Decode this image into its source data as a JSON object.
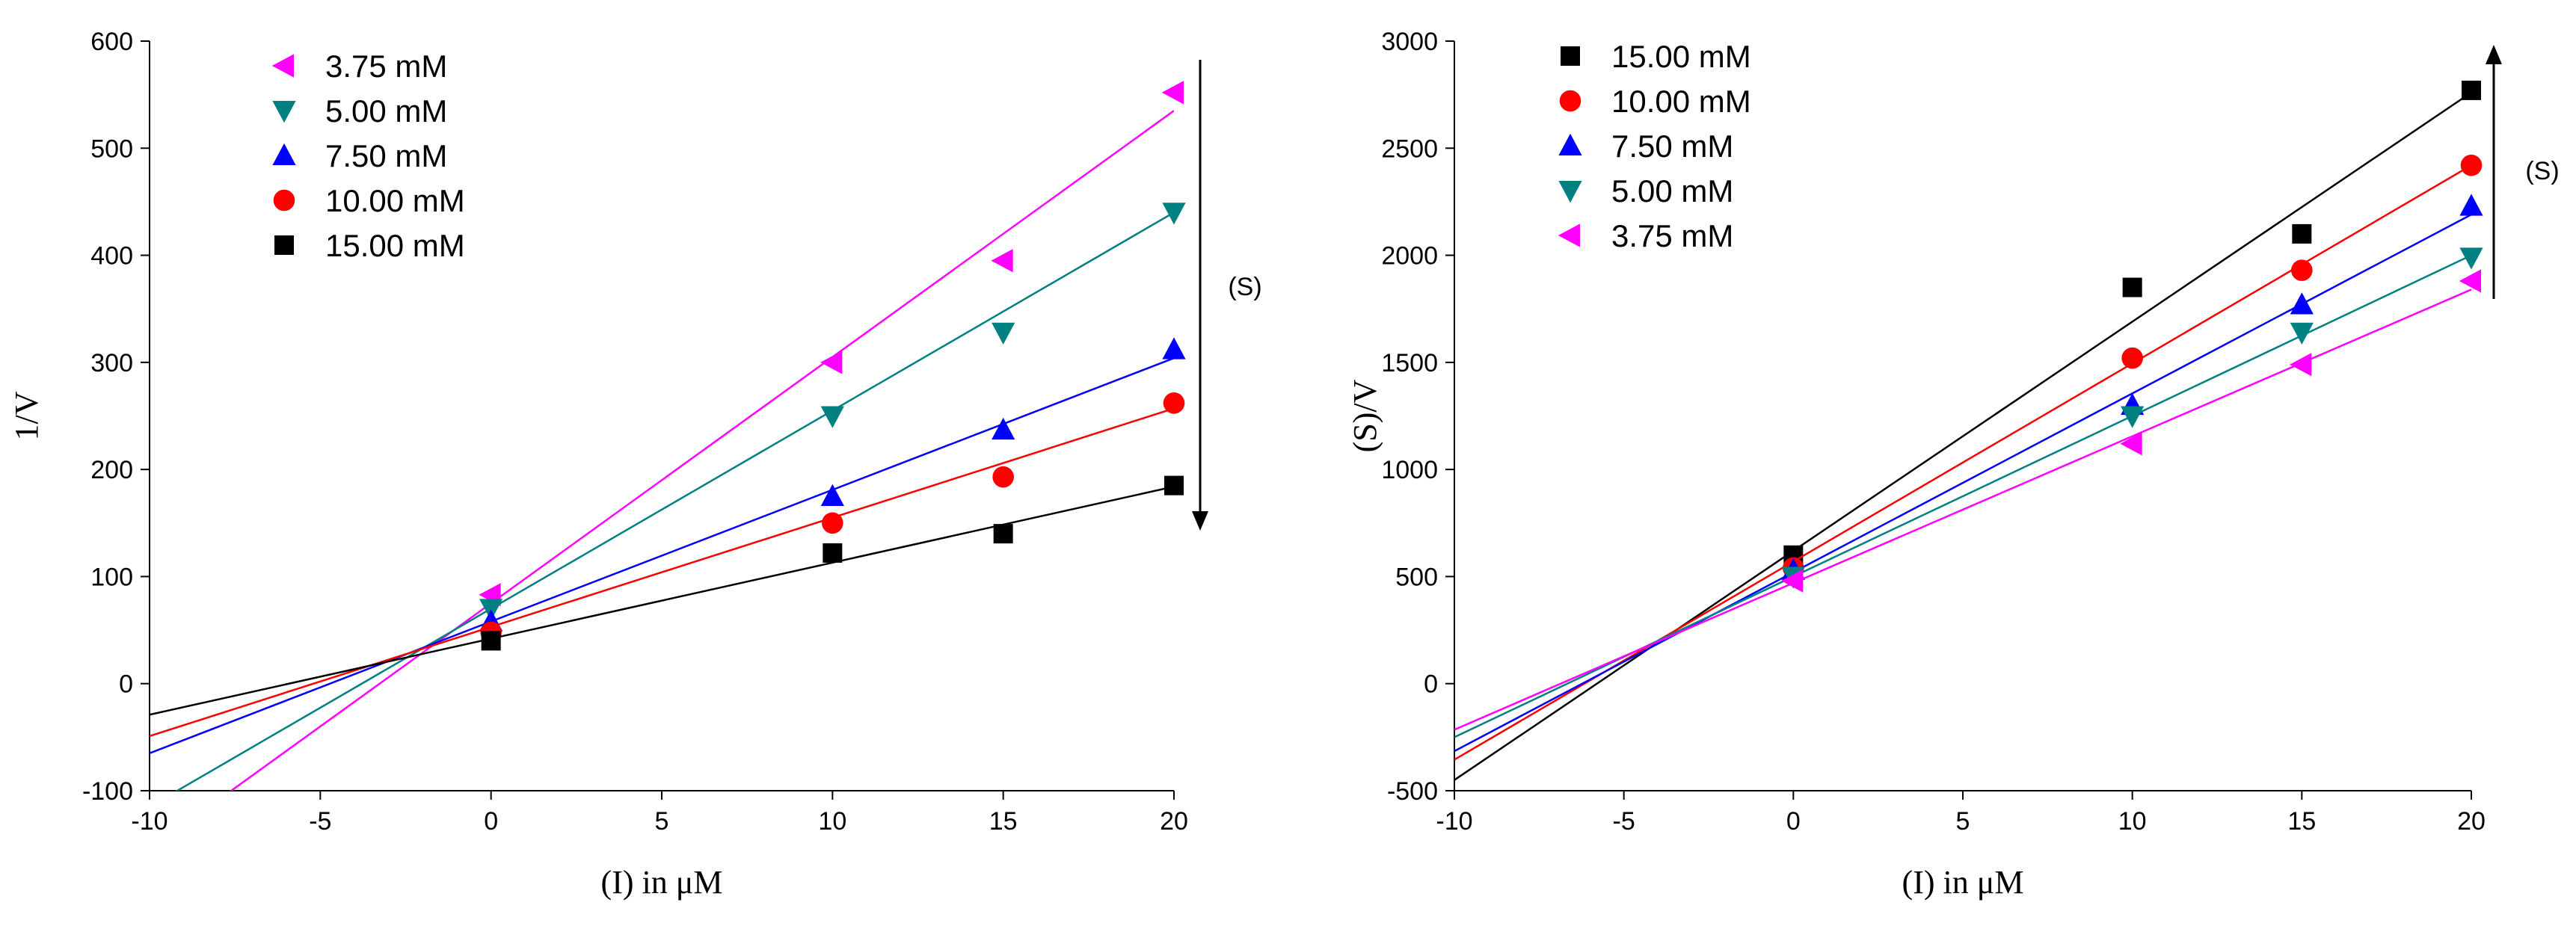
{
  "chart_data": [
    {
      "type": "scatter",
      "xlabel": "(I) in μM",
      "ylabel": "1/V",
      "xlim": [
        -10,
        20
      ],
      "ylim": [
        -100,
        600
      ],
      "x_ticks": [
        -10,
        -5,
        0,
        5,
        10,
        15,
        20
      ],
      "y_ticks": [
        -100,
        0,
        100,
        200,
        300,
        400,
        500,
        600
      ],
      "x_tick_labels": [
        "-10",
        "-5",
        "0",
        "5",
        "10",
        "15",
        "20"
      ],
      "y_tick_labels": [
        "-100",
        "0",
        "100",
        "200",
        "300",
        "400",
        "500",
        "600"
      ],
      "grid": false,
      "legend_position": "top-left",
      "series": [
        {
          "name": "3.75 mM",
          "color": "#ff00ff",
          "marker": "triangle-left",
          "x": [
            0,
            10,
            15,
            20
          ],
          "y": [
            83,
            300,
            395,
            552
          ],
          "fit": [
            75,
            23.0
          ]
        },
        {
          "name": "5.00 mM",
          "color": "#008080",
          "marker": "triangle-down",
          "x": [
            0,
            10,
            15,
            20
          ],
          "y": [
            70,
            250,
            328,
            440
          ],
          "fit": [
            70,
            18.5
          ]
        },
        {
          "name": "7.50 mM",
          "color": "#0000ff",
          "marker": "triangle-up",
          "x": [
            0,
            10,
            15,
            20
          ],
          "y": [
            58,
            175,
            237,
            312
          ],
          "fit": [
            58,
            12.3
          ]
        },
        {
          "name": "10.00 mM",
          "color": "#ff0000",
          "marker": "circle",
          "x": [
            0,
            10,
            15,
            20
          ],
          "y": [
            48,
            150,
            193,
            262
          ],
          "fit": [
            53,
            10.2
          ]
        },
        {
          "name": "15.00 mM",
          "color": "#000000",
          "marker": "square",
          "x": [
            0,
            10,
            15,
            20
          ],
          "y": [
            40,
            122,
            140,
            185
          ],
          "fit": [
            42,
            7.1
          ]
        }
      ],
      "arrow": {
        "label": "(S)",
        "direction": "down"
      }
    },
    {
      "type": "scatter",
      "xlabel": "(I) in μM",
      "ylabel": "(S)/V",
      "xlim": [
        -10,
        20
      ],
      "ylim": [
        -500,
        3000
      ],
      "x_ticks": [
        -10,
        -5,
        0,
        5,
        10,
        15,
        20
      ],
      "y_ticks": [
        -500,
        0,
        500,
        1000,
        1500,
        2000,
        2500,
        3000
      ],
      "x_tick_labels": [
        "-10",
        "-5",
        "0",
        "5",
        "10",
        "15",
        "20"
      ],
      "y_tick_labels": [
        "-500",
        "0",
        "500",
        "1000",
        "1500",
        "2000",
        "2500",
        "3000"
      ],
      "grid": false,
      "legend_position": "top-left",
      "series": [
        {
          "name": "15.00 mM",
          "color": "#000000",
          "marker": "square",
          "x": [
            0,
            10,
            15,
            20
          ],
          "y": [
            600,
            1850,
            2100,
            2770
          ],
          "fit": [
            620,
            107.0
          ]
        },
        {
          "name": "10.00 mM",
          "color": "#ff0000",
          "marker": "circle",
          "x": [
            0,
            10,
            15,
            20
          ],
          "y": [
            540,
            1520,
            1930,
            2420
          ],
          "fit": [
            570,
            92.5
          ]
        },
        {
          "name": "7.50 mM",
          "color": "#0000ff",
          "marker": "triangle-up",
          "x": [
            0,
            10,
            15,
            20
          ],
          "y": [
            530,
            1300,
            1770,
            2230
          ],
          "fit": [
            520,
            83.5
          ]
        },
        {
          "name": "5.00 mM",
          "color": "#008080",
          "marker": "triangle-down",
          "x": [
            0,
            10,
            15,
            20
          ],
          "y": [
            500,
            1250,
            1640,
            1990
          ],
          "fit": [
            500,
            75.0
          ]
        },
        {
          "name": "3.75 mM",
          "color": "#ff00ff",
          "marker": "triangle-left",
          "x": [
            0,
            10,
            15,
            20
          ],
          "y": [
            480,
            1120,
            1490,
            1880
          ],
          "fit": [
            470,
            68.5
          ]
        }
      ],
      "arrow": {
        "label": "(S)",
        "direction": "up"
      }
    }
  ]
}
